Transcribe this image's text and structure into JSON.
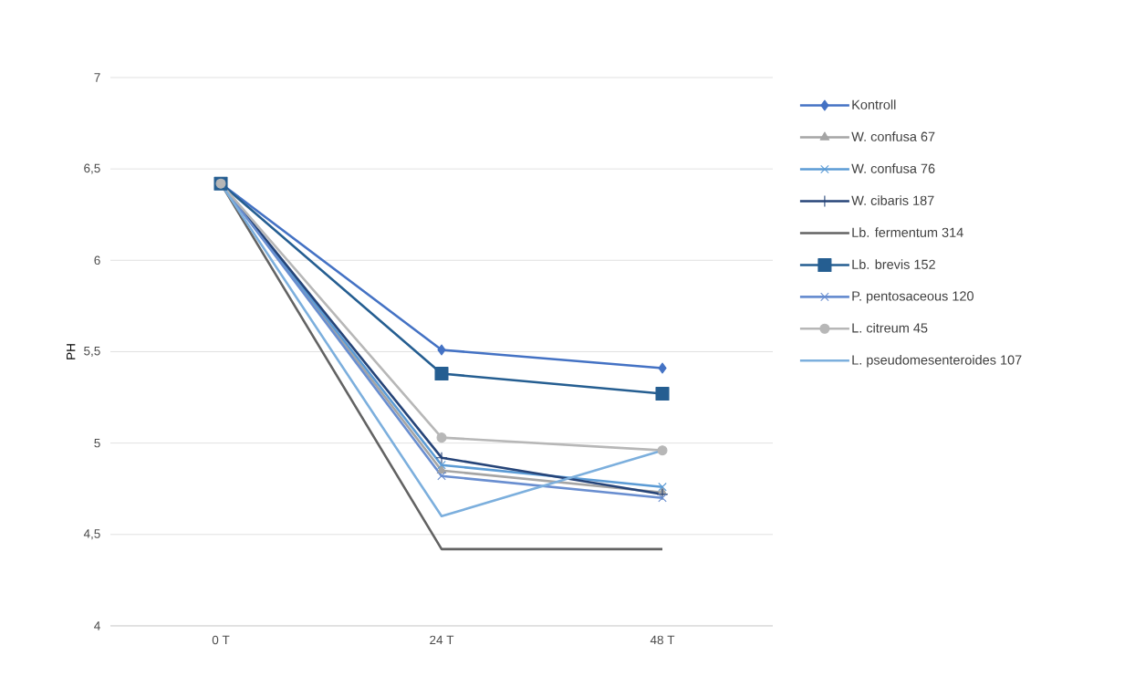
{
  "chart_data": {
    "type": "line",
    "ylabel": "PH",
    "categories": [
      "0  T",
      "24  T",
      "48  T"
    ],
    "ylim": [
      4,
      7
    ],
    "yticks": [
      {
        "value": 4,
        "label": "4"
      },
      {
        "value": 4.5,
        "label": "4,5"
      },
      {
        "value": 5,
        "label": "5"
      },
      {
        "value": 5.5,
        "label": "5,5"
      },
      {
        "value": 6,
        "label": "6"
      },
      {
        "value": 6.5,
        "label": "6,5"
      },
      {
        "value": 7,
        "label": "7"
      }
    ],
    "grid": "y",
    "legend": "right",
    "series": [
      {
        "name": "Kontroll",
        "color": "#4472c4",
        "marker": "diamond",
        "values": [
          6.42,
          5.51,
          5.41
        ]
      },
      {
        "name": "W. confusa 67",
        "color": "#a5a5a5",
        "marker": "triangle",
        "values": [
          6.42,
          4.85,
          4.73
        ]
      },
      {
        "name": "W. confusa 76",
        "color": "#5b9bd5",
        "marker": "cross",
        "values": [
          6.42,
          4.88,
          4.76
        ]
      },
      {
        "name": "W. cibaris 187",
        "color": "#264478",
        "marker": "plus",
        "values": [
          6.42,
          4.92,
          4.72
        ]
      },
      {
        "name": "Lb. fermentum 314",
        "color": "#636363",
        "marker": "none",
        "values": [
          6.42,
          4.42,
          4.42
        ]
      },
      {
        "name": "Lb. brevis 152",
        "color": "#255e91",
        "marker": "square",
        "values": [
          6.42,
          5.38,
          5.27
        ]
      },
      {
        "name": "P. pentosaceous 120",
        "color": "#698ed0",
        "marker": "cross",
        "values": [
          6.42,
          4.82,
          4.7
        ]
      },
      {
        "name": "L. citreum 45",
        "color": "#b7b7b7",
        "marker": "circle",
        "values": [
          6.42,
          5.03,
          4.96
        ]
      },
      {
        "name": "L. pseudomesenteroides 107",
        "color": "#7cafdd",
        "marker": "none",
        "values": [
          6.42,
          4.6,
          4.96
        ]
      }
    ]
  }
}
